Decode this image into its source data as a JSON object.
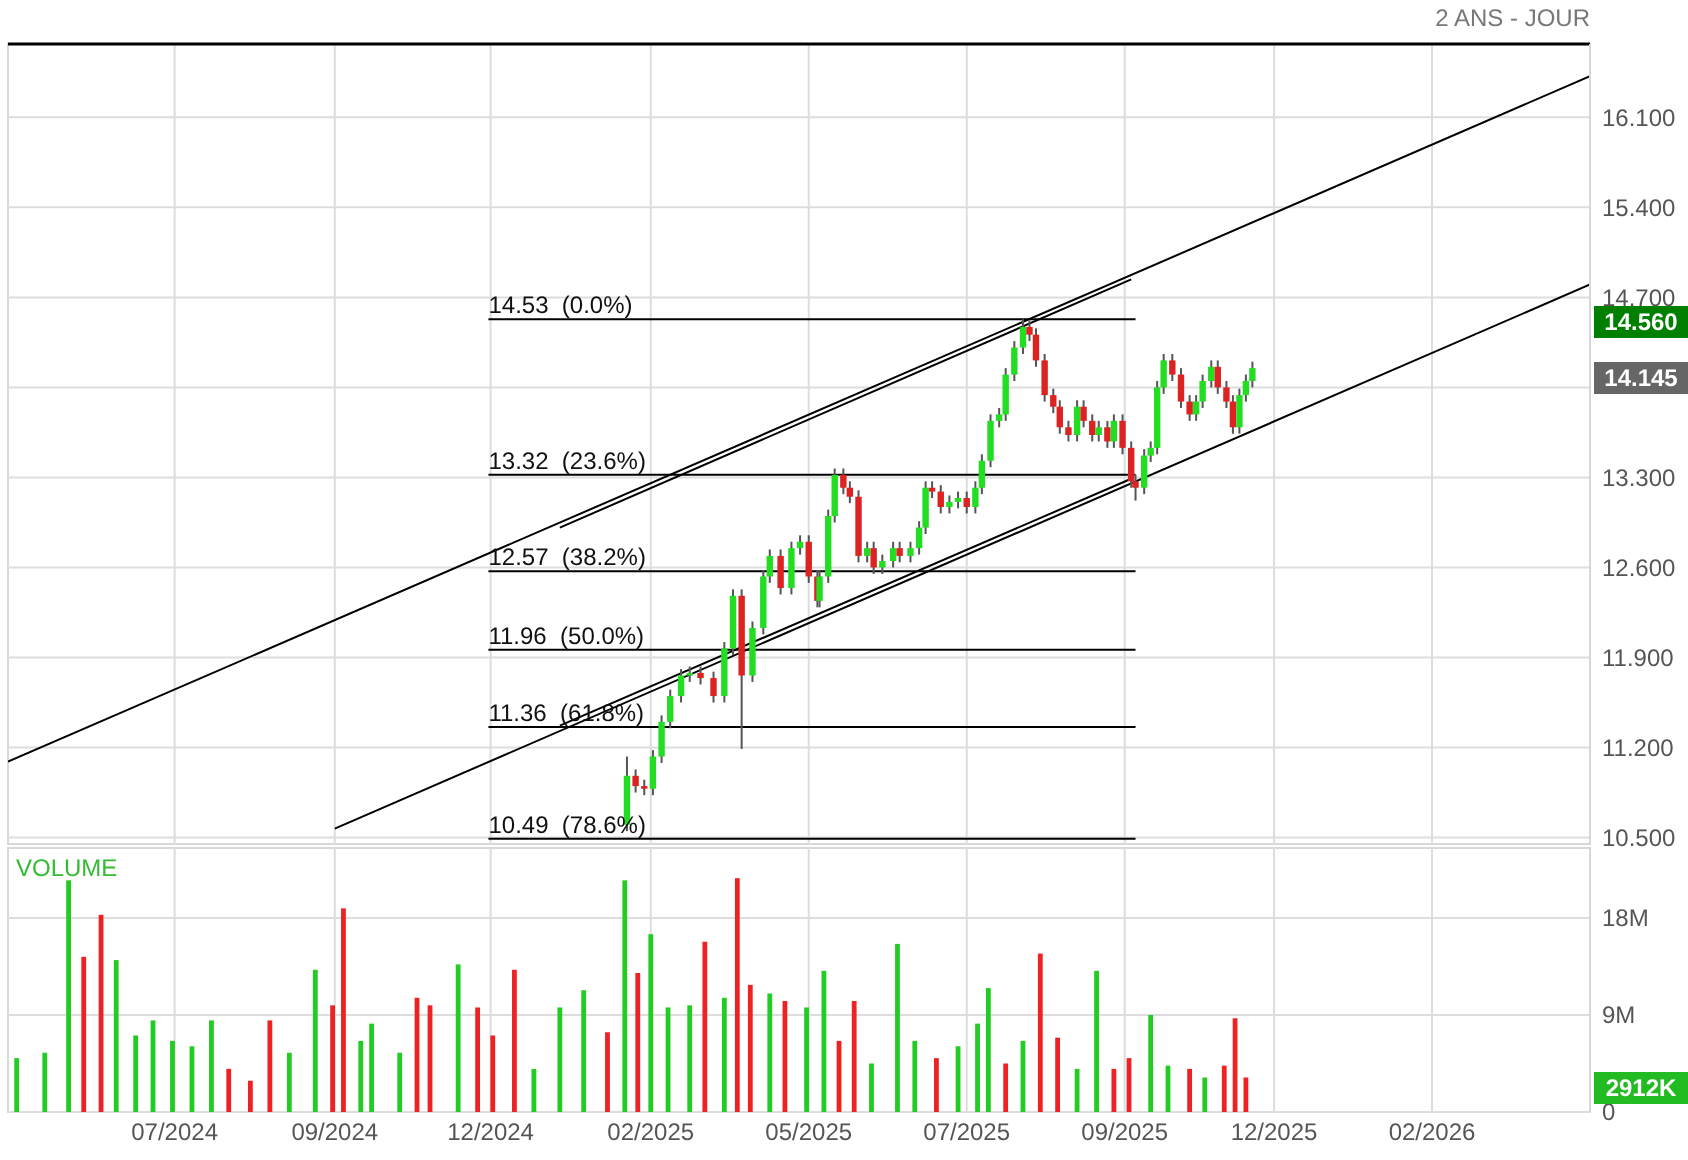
{
  "chart_data": [
    {
      "type": "candlestick",
      "title": "2 ANS - JOUR",
      "xlim": [
        "2024-04-29",
        "2026-04-30"
      ],
      "ylim": [
        10.45,
        16.67
      ],
      "xticks": [
        {
          "value": "2024-07-15",
          "label": null
        },
        {
          "value": "2024-09-27",
          "label": null
        },
        {
          "value": "2024-12-08",
          "label": null
        },
        {
          "value": "2025-02-20",
          "label": null
        },
        {
          "value": "2025-05-04",
          "label": null
        },
        {
          "value": "2025-07-16",
          "label": null
        },
        {
          "value": "2025-09-27",
          "label": null
        },
        {
          "value": "2025-12-05",
          "label": null
        },
        {
          "value": "2026-02-16",
          "label": null
        }
      ],
      "yticks": [
        {
          "value": 10.5,
          "label": "10.500"
        },
        {
          "value": 11.2,
          "label": "11.200"
        },
        {
          "value": 11.9,
          "label": "11.900"
        },
        {
          "value": 12.6,
          "label": "12.600"
        },
        {
          "value": 13.3,
          "label": "13.300"
        },
        {
          "value": 14.0,
          "label": null
        },
        {
          "value": 14.7,
          "label": "14.700"
        },
        {
          "value": 15.4,
          "label": "15.400"
        },
        {
          "value": 16.1,
          "label": "16.100"
        }
      ],
      "tick_labels": "y",
      "grid": true,
      "series": [
        {
          "type": "candlestick",
          "x": [
            "2025-02-09",
            "2025-02-13",
            "2025-02-17",
            "2025-02-21",
            "2025-02-25",
            "2025-03-01",
            "2025-03-06",
            "2025-03-10",
            "2025-03-15",
            "2025-03-21",
            "2025-03-26",
            "2025-03-30",
            "2025-04-03",
            "2025-04-08",
            "2025-04-13",
            "2025-04-16",
            "2025-04-21",
            "2025-04-26",
            "2025-04-30",
            "2025-05-04",
            "2025-05-08",
            "2025-05-09",
            "2025-05-13",
            "2025-05-16",
            "2025-05-20",
            "2025-05-23",
            "2025-05-27",
            "2025-05-31",
            "2025-06-03",
            "2025-06-07",
            "2025-06-12",
            "2025-06-15",
            "2025-06-20",
            "2025-06-24",
            "2025-06-27",
            "2025-06-30",
            "2025-07-04",
            "2025-07-08",
            "2025-07-12",
            "2025-07-16",
            "2025-07-20",
            "2025-07-23",
            "2025-07-27",
            "2025-07-31",
            "2025-08-03",
            "2025-08-07",
            "2025-08-11",
            "2025-08-14",
            "2025-08-17",
            "2025-08-21",
            "2025-08-25",
            "2025-08-28",
            "2025-09-01",
            "2025-09-05",
            "2025-09-08",
            "2025-09-12",
            "2025-09-15",
            "2025-09-19",
            "2025-09-22",
            "2025-09-26",
            "2025-09-30",
            "2025-10-02",
            "2025-10-06",
            "2025-10-09",
            "2025-10-12",
            "2025-10-15",
            "2025-10-19",
            "2025-10-23",
            "2025-10-27",
            "2025-10-30",
            "2025-11-02",
            "2025-11-06",
            "2025-11-09",
            "2025-11-13",
            "2025-11-16",
            "2025-11-19",
            "2025-11-22",
            "2025-11-25"
          ],
          "ohlc": [
            [
              10.6,
              11.13,
              10.55,
              10.98
            ],
            [
              10.98,
              11.03,
              10.85,
              10.9
            ],
            [
              10.9,
              10.95,
              10.83,
              10.88
            ],
            [
              10.88,
              11.18,
              10.83,
              11.13
            ],
            [
              11.13,
              11.45,
              11.08,
              11.4
            ],
            [
              11.4,
              11.65,
              11.35,
              11.6
            ],
            [
              11.6,
              11.81,
              11.55,
              11.76
            ],
            [
              11.76,
              11.83,
              11.71,
              11.78
            ],
            [
              11.78,
              11.83,
              11.69,
              11.74
            ],
            [
              11.74,
              11.79,
              11.55,
              11.6
            ],
            [
              11.6,
              12.02,
              11.55,
              11.97
            ],
            [
              11.97,
              12.43,
              11.92,
              12.38
            ],
            [
              12.38,
              12.43,
              11.19,
              11.76
            ],
            [
              11.76,
              12.18,
              11.71,
              12.13
            ],
            [
              12.13,
              12.58,
              12.08,
              12.53
            ],
            [
              12.53,
              12.74,
              12.48,
              12.69
            ],
            [
              12.69,
              12.74,
              12.39,
              12.44
            ],
            [
              12.44,
              12.8,
              12.39,
              12.75
            ],
            [
              12.75,
              12.85,
              12.7,
              12.8
            ],
            [
              12.8,
              12.85,
              12.48,
              12.53
            ],
            [
              12.53,
              12.58,
              12.29,
              12.34
            ],
            [
              12.34,
              12.58,
              12.29,
              12.53
            ],
            [
              12.53,
              13.05,
              12.48,
              13.0
            ],
            [
              13.0,
              13.37,
              12.95,
              13.32
            ],
            [
              13.32,
              13.37,
              13.17,
              13.22
            ],
            [
              13.22,
              13.27,
              13.1,
              13.15
            ],
            [
              13.15,
              13.2,
              12.64,
              12.69
            ],
            [
              12.69,
              12.8,
              12.64,
              12.75
            ],
            [
              12.75,
              12.8,
              12.55,
              12.6
            ],
            [
              12.6,
              12.7,
              12.55,
              12.65
            ],
            [
              12.65,
              12.8,
              12.6,
              12.75
            ],
            [
              12.75,
              12.8,
              12.64,
              12.69
            ],
            [
              12.69,
              12.8,
              12.64,
              12.75
            ],
            [
              12.75,
              12.96,
              12.7,
              12.91
            ],
            [
              12.91,
              13.27,
              12.86,
              13.22
            ],
            [
              13.22,
              13.27,
              13.14,
              13.19
            ],
            [
              13.19,
              13.24,
              13.02,
              13.07
            ],
            [
              13.07,
              13.16,
              13.02,
              13.11
            ],
            [
              13.11,
              13.19,
              13.06,
              13.14
            ],
            [
              13.14,
              13.19,
              13.02,
              13.07
            ],
            [
              13.07,
              13.27,
              13.02,
              13.22
            ],
            [
              13.22,
              13.48,
              13.17,
              13.43
            ],
            [
              13.43,
              13.79,
              13.38,
              13.74
            ],
            [
              13.74,
              13.84,
              13.69,
              13.79
            ],
            [
              13.79,
              14.15,
              13.74,
              14.1
            ],
            [
              14.1,
              14.36,
              14.05,
              14.31
            ],
            [
              14.31,
              14.53,
              14.26,
              14.47
            ],
            [
              14.47,
              14.52,
              14.36,
              14.41
            ],
            [
              14.41,
              14.46,
              14.16,
              14.21
            ],
            [
              14.21,
              14.26,
              13.89,
              13.94
            ],
            [
              13.94,
              13.99,
              13.8,
              13.85
            ],
            [
              13.85,
              13.9,
              13.64,
              13.69
            ],
            [
              13.69,
              13.74,
              13.58,
              13.63
            ],
            [
              13.63,
              13.9,
              13.58,
              13.85
            ],
            [
              13.85,
              13.9,
              13.69,
              13.74
            ],
            [
              13.74,
              13.79,
              13.58,
              13.63
            ],
            [
              13.63,
              13.74,
              13.58,
              13.69
            ],
            [
              13.69,
              13.74,
              13.53,
              13.58
            ],
            [
              13.58,
              13.79,
              13.53,
              13.74
            ],
            [
              13.74,
              13.79,
              13.48,
              13.53
            ],
            [
              13.53,
              13.58,
              13.22,
              13.27
            ],
            [
              13.27,
              13.32,
              13.12,
              13.22
            ],
            [
              13.22,
              13.52,
              13.17,
              13.47
            ],
            [
              13.47,
              13.58,
              13.42,
              13.53
            ],
            [
              13.53,
              14.05,
              13.48,
              14.0
            ],
            [
              14.0,
              14.26,
              13.95,
              14.21
            ],
            [
              14.21,
              14.26,
              14.05,
              14.1
            ],
            [
              14.1,
              14.15,
              13.84,
              13.89
            ],
            [
              13.89,
              13.94,
              13.74,
              13.79
            ],
            [
              13.79,
              13.94,
              13.74,
              13.89
            ],
            [
              13.89,
              14.1,
              13.84,
              14.05
            ],
            [
              14.05,
              14.21,
              14.0,
              14.16
            ],
            [
              14.16,
              14.21,
              13.95,
              14.0
            ],
            [
              14.0,
              14.05,
              13.84,
              13.89
            ],
            [
              13.89,
              13.94,
              13.64,
              13.69
            ],
            [
              13.69,
              13.99,
              13.64,
              13.94
            ],
            [
              13.94,
              14.1,
              13.89,
              14.05
            ],
            [
              14.05,
              14.2,
              14.0,
              14.15
            ]
          ],
          "colors": [
            "#22dd22",
            "#dd2222",
            "#dd2222",
            "#22dd22",
            "#22dd22",
            "#22dd22",
            "#22dd22",
            "#22dd22",
            "#dd2222",
            "#dd2222",
            "#22dd22",
            "#22dd22",
            "#dd2222",
            "#22dd22",
            "#22dd22",
            "#22dd22",
            "#dd2222",
            "#22dd22",
            "#22dd22",
            "#dd2222",
            "#dd2222",
            "#22dd22",
            "#22dd22",
            "#22dd22",
            "#dd2222",
            "#dd2222",
            "#dd2222",
            "#22dd22",
            "#dd2222",
            "#22dd22",
            "#22dd22",
            "#dd2222",
            "#22dd22",
            "#22dd22",
            "#22dd22",
            "#dd2222",
            "#dd2222",
            "#22dd22",
            "#22dd22",
            "#dd2222",
            "#22dd22",
            "#22dd22",
            "#22dd22",
            "#22dd22",
            "#22dd22",
            "#22dd22",
            "#22dd22",
            "#dd2222",
            "#dd2222",
            "#dd2222",
            "#dd2222",
            "#dd2222",
            "#dd2222",
            "#22dd22",
            "#dd2222",
            "#dd2222",
            "#22dd22",
            "#dd2222",
            "#22dd22",
            "#dd2222",
            "#dd2222",
            "#dd2222",
            "#22dd22",
            "#22dd22",
            "#22dd22",
            "#22dd22",
            "#dd2222",
            "#dd2222",
            "#dd2222",
            "#22dd22",
            "#22dd22",
            "#22dd22",
            "#dd2222",
            "#dd2222",
            "#dd2222",
            "#22dd22",
            "#22dd22",
            "#22dd22"
          ]
        },
        {
          "type": "line",
          "color": "#000000",
          "x": [
            "2024-04-29",
            "2026-04-30"
          ],
          "values": [
            11.09,
            16.42
          ]
        },
        {
          "type": "line",
          "color": "#000000",
          "x": [
            "2024-09-27",
            "2026-04-30"
          ],
          "values": [
            10.57,
            14.8
          ]
        },
        {
          "type": "line",
          "color": "#000000",
          "x": [
            "2025-01-09",
            "2025-09-30"
          ],
          "values": [
            12.91,
            14.84
          ]
        },
        {
          "type": "line",
          "color": "#000000",
          "x": [
            "2025-01-09",
            "2025-09-30"
          ],
          "values": [
            11.37,
            13.29
          ]
        },
        {
          "type": "line",
          "color": "#000000",
          "name": "14.53  (0.0%)",
          "x": [
            "2024-12-07",
            "2025-10-02"
          ],
          "values": [
            14.53,
            14.53
          ]
        },
        {
          "type": "line",
          "color": "#000000",
          "name": "13.32  (23.6%)",
          "x": [
            "2024-12-07",
            "2025-10-02"
          ],
          "values": [
            13.32,
            13.32
          ]
        },
        {
          "type": "line",
          "color": "#000000",
          "name": "12.57  (38.2%)",
          "x": [
            "2024-12-07",
            "2025-10-02"
          ],
          "values": [
            12.57,
            12.57
          ]
        },
        {
          "type": "line",
          "color": "#000000",
          "name": "11.96  (50.0%)",
          "x": [
            "2024-12-07",
            "2025-10-02"
          ],
          "values": [
            11.96,
            11.96
          ]
        },
        {
          "type": "line",
          "color": "#000000",
          "name": "11.36  (61.8%)",
          "x": [
            "2024-12-07",
            "2025-10-02"
          ],
          "values": [
            11.36,
            11.36
          ]
        },
        {
          "type": "line",
          "color": "#000000",
          "name": "10.49  (78.6%)",
          "x": [
            "2024-12-07",
            "2025-10-02"
          ],
          "values": [
            10.49,
            10.49
          ]
        }
      ],
      "annotations": [
        "14.560",
        "14.145"
      ]
    },
    {
      "type": "bar",
      "title": "VOLUME",
      "xlim": [
        "2024-04-29",
        "2026-04-30"
      ],
      "ylim": [
        0,
        24.5
      ],
      "xticks": [
        {
          "value": "2024-07-15",
          "label": "07/2024"
        },
        {
          "value": "2024-09-27",
          "label": "09/2024"
        },
        {
          "value": "2024-12-08",
          "label": "12/2024"
        },
        {
          "value": "2025-02-20",
          "label": "02/2025"
        },
        {
          "value": "2025-05-04",
          "label": "05/2025"
        },
        {
          "value": "2025-07-16",
          "label": "07/2025"
        },
        {
          "value": "2025-09-27",
          "label": "09/2025"
        },
        {
          "value": "2025-12-05",
          "label": "12/2025"
        },
        {
          "value": "2026-02-16",
          "label": "02/2026"
        }
      ],
      "yticks": [
        0,
        {
          "value": 9,
          "label": "9M"
        },
        {
          "value": 18,
          "label": "18M"
        }
      ],
      "grid": true,
      "x": [
        "2024-05-03",
        "2024-05-16",
        "2024-05-27",
        "2024-06-03",
        "2024-06-11",
        "2024-06-18",
        "2024-06-27",
        "2024-07-05",
        "2024-07-14",
        "2024-07-23",
        "2024-08-01",
        "2024-08-09",
        "2024-08-19",
        "2024-08-28",
        "2024-09-06",
        "2024-09-18",
        "2024-09-26",
        "2024-10-01",
        "2024-10-09",
        "2024-10-14",
        "2024-10-27",
        "2024-11-04",
        "2024-11-10",
        "2024-11-23",
        "2024-12-02",
        "2024-12-09",
        "2024-12-19",
        "2024-12-28",
        "2025-01-09",
        "2025-01-20",
        "2025-01-31",
        "2025-02-08",
        "2025-02-14",
        "2025-02-20",
        "2025-02-28",
        "2025-03-10",
        "2025-03-17",
        "2025-03-26",
        "2025-04-01",
        "2025-04-07",
        "2025-04-16",
        "2025-04-23",
        "2025-05-03",
        "2025-05-11",
        "2025-05-18",
        "2025-05-25",
        "2025-06-02",
        "2025-06-14",
        "2025-06-22",
        "2025-07-02",
        "2025-07-12",
        "2025-07-21",
        "2025-07-26",
        "2025-08-03",
        "2025-08-11",
        "2025-08-19",
        "2025-08-27",
        "2025-09-05",
        "2025-09-14",
        "2025-09-22",
        "2025-09-29",
        "2025-10-09",
        "2025-10-17",
        "2025-10-27",
        "2025-11-03",
        "2025-11-12",
        "2025-11-17",
        "2025-11-22"
      ],
      "values": [
        5.0,
        5.5,
        21.5,
        14.4,
        18.3,
        14.1,
        7.1,
        8.5,
        6.6,
        6.1,
        8.5,
        4.0,
        2.9,
        8.5,
        5.5,
        13.2,
        9.9,
        18.9,
        6.6,
        8.2,
        5.5,
        10.6,
        9.9,
        13.7,
        9.7,
        7.1,
        13.2,
        4.0,
        9.7,
        11.3,
        7.4,
        21.5,
        12.9,
        16.5,
        9.7,
        9.9,
        15.8,
        10.6,
        21.7,
        11.8,
        11.0,
        10.3,
        9.7,
        13.1,
        6.6,
        10.3,
        4.5,
        15.6,
        6.6,
        5.0,
        6.1,
        8.2,
        11.5,
        4.5,
        6.6,
        14.7,
        6.9,
        4.0,
        13.1,
        4.0,
        5.0,
        9.0,
        4.3,
        4.0,
        3.2,
        4.3,
        8.7,
        3.2
      ],
      "colors": [
        "#22cc22",
        "#22cc22",
        "#22cc22",
        "#ee2222",
        "#ee2222",
        "#22cc22",
        "#22cc22",
        "#22cc22",
        "#22cc22",
        "#22cc22",
        "#22cc22",
        "#ee2222",
        "#ee2222",
        "#ee2222",
        "#22cc22",
        "#22cc22",
        "#ee2222",
        "#ee2222",
        "#22cc22",
        "#22cc22",
        "#22cc22",
        "#ee2222",
        "#ee2222",
        "#22cc22",
        "#ee2222",
        "#ee2222",
        "#ee2222",
        "#22cc22",
        "#22cc22",
        "#22cc22",
        "#ee2222",
        "#22cc22",
        "#ee2222",
        "#22cc22",
        "#22cc22",
        "#22cc22",
        "#ee2222",
        "#22cc22",
        "#ee2222",
        "#ee2222",
        "#22cc22",
        "#ee2222",
        "#22cc22",
        "#22cc22",
        "#ee2222",
        "#ee2222",
        "#22cc22",
        "#22cc22",
        "#22cc22",
        "#ee2222",
        "#22cc22",
        "#22cc22",
        "#22cc22",
        "#ee2222",
        "#22cc22",
        "#ee2222",
        "#ee2222",
        "#22cc22",
        "#22cc22",
        "#ee2222",
        "#ee2222",
        "#22cc22",
        "#22cc22",
        "#ee2222",
        "#22cc22",
        "#ee2222",
        "#ee2222",
        "#ee2222"
      ],
      "annotations": [
        "2912K"
      ]
    }
  ]
}
